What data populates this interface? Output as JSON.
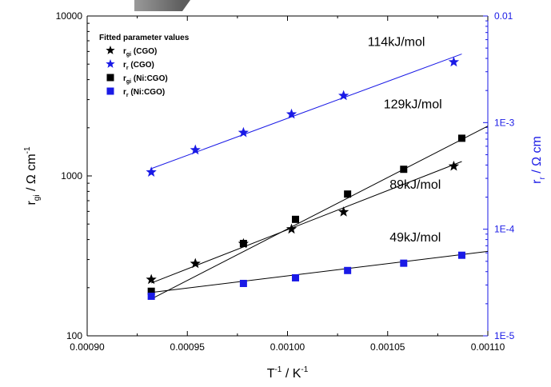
{
  "chart_data": {
    "type": "scatter",
    "x_axis": {
      "label_main": "T",
      "label_sup1": "-1",
      "label_mid": " / K",
      "label_sup2": "-1",
      "lim": [
        0.0009,
        0.0011
      ],
      "ticks": [
        0.0009,
        0.00095,
        0.001,
        0.00105,
        0.0011
      ],
      "tick_labels": [
        "0.00090",
        "0.00095",
        "0.00100",
        "0.00105",
        "0.00110"
      ]
    },
    "y_axis_left": {
      "label_main": "r",
      "label_sub": "gi",
      "label_rest": " / Ω cm",
      "label_sup": "-1",
      "scale": "log",
      "lim": [
        100,
        10000
      ],
      "ticks": [
        100,
        1000,
        10000
      ],
      "tick_labels": [
        "100",
        "1000",
        "10000"
      ]
    },
    "y_axis_right": {
      "label_main": "r",
      "label_sub": "r",
      "label_rest": " / Ω cm",
      "scale": "log",
      "lim": [
        1e-05,
        0.01
      ],
      "ticks": [
        1e-05,
        0.0001,
        0.001,
        0.01
      ],
      "tick_labels": [
        "1E-5",
        "1E-4",
        "1E-3",
        "0.01"
      ],
      "color": "#1a1ae6"
    },
    "legend": {
      "title": "Fitted parameter values",
      "position": "top-left"
    },
    "series": [
      {
        "legend_main": "r",
        "legend_sub": "gi",
        "legend_rest": " (CGO)",
        "marker": "star",
        "color": "#000000",
        "axis": "left",
        "x": [
          0.000932,
          0.000954,
          0.000978,
          0.001002,
          0.001028,
          0.001083
        ],
        "y": [
          225,
          283,
          377,
          465,
          595,
          1150
        ],
        "fit": {
          "x": [
            0.000932,
            0.001087
          ],
          "y": [
            214,
            1230
          ]
        }
      },
      {
        "legend_main": "r",
        "legend_sub": "r",
        "legend_rest": " (CGO)",
        "marker": "star",
        "color": "#1a1ae6",
        "axis": "right",
        "x": [
          0.000932,
          0.000954,
          0.000978,
          0.001002,
          0.001028,
          0.001083
        ],
        "y": [
          0.000343,
          0.000554,
          0.000806,
          0.0012,
          0.00179,
          0.0037
        ],
        "fit": {
          "x": [
            0.000932,
            0.001087
          ],
          "y": [
            0.00037,
            0.0044
          ]
        }
      },
      {
        "legend_main": "r",
        "legend_sub": "gi",
        "legend_rest": " (Ni:CGO)",
        "marker": "square",
        "color": "#000000",
        "axis": "left",
        "x": [
          0.000932,
          0.000978,
          0.001004,
          0.00103,
          0.001058,
          0.001087
        ],
        "y": [
          190,
          378,
          535,
          770,
          1100,
          1720
        ],
        "fit": {
          "x": [
            0.000932,
            0.0011
          ],
          "y": [
            170,
            2050
          ]
        }
      },
      {
        "legend_main": "r",
        "legend_sub": "r",
        "legend_rest": " (Ni:CGO)",
        "marker": "square",
        "color": "#1a1ae6",
        "axis": "right",
        "x": [
          0.000932,
          0.000978,
          0.001004,
          0.00103,
          0.001058,
          0.001087
        ],
        "y": [
          2.35e-05,
          3.1e-05,
          3.5e-05,
          4.1e-05,
          4.8e-05,
          5.7e-05
        ],
        "fit": {
          "x": [
            0.000932,
            0.0011
          ],
          "y": [
            2.55e-05,
            6.2e-05
          ]
        }
      }
    ],
    "annotations": [
      {
        "text": "114kJ/mol",
        "x": 0.00104,
        "y": 6500,
        "axis": "left"
      },
      {
        "text": "129kJ/mol",
        "x": 0.001048,
        "y": 2650,
        "axis": "left"
      },
      {
        "text": "89kJ/mol",
        "x": 0.001051,
        "y": 830,
        "axis": "left"
      },
      {
        "text": "49kJ/mol",
        "x": 0.001051,
        "y": 390,
        "axis": "left"
      }
    ],
    "grid": false
  },
  "colors": {
    "axis_black": "#000000",
    "axis_blue": "#1a1ae6",
    "series_blue": "#1a1ae6"
  }
}
